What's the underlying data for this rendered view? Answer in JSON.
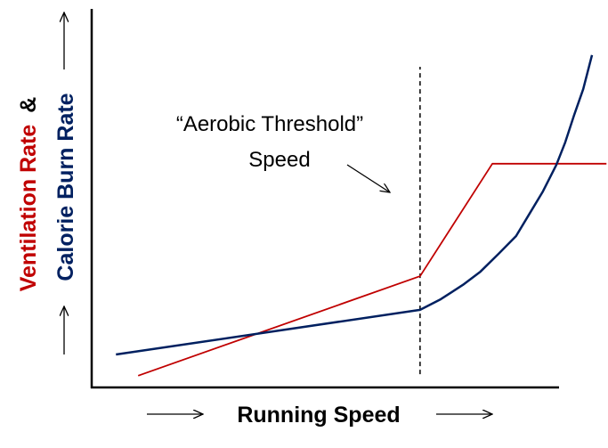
{
  "chart_data": {
    "type": "line",
    "x_label": "Running Speed",
    "y_label_conjunction": "&",
    "annotation": [
      "“Aerobic Threshold”",
      "Speed"
    ],
    "threshold": {
      "x": 63.6,
      "y": [
        3.5,
        84.7
      ]
    },
    "xlim": [
      0,
      100
    ],
    "ylim": [
      0,
      100
    ],
    "series": [
      {
        "name": "Ventilation Rate",
        "color": "#c00000",
        "x": [
          9,
          63.6,
          77.6,
          99.7
        ],
        "values": [
          3.1,
          29.4,
          59.1,
          59.1
        ]
      },
      {
        "name": "Calorie Burn Rate",
        "color": "#002060",
        "x": [
          4.7,
          63.6,
          67.6,
          71.9,
          75.3,
          78.8,
          82.2,
          84.8,
          87.4,
          90,
          91.7,
          93.4,
          95.2,
          96.9
        ],
        "values": [
          8.7,
          20.5,
          23.3,
          27.1,
          30.6,
          35.3,
          40,
          45.9,
          51.8,
          58.8,
          64.7,
          71.8,
          78.8,
          87.8
        ]
      }
    ]
  }
}
